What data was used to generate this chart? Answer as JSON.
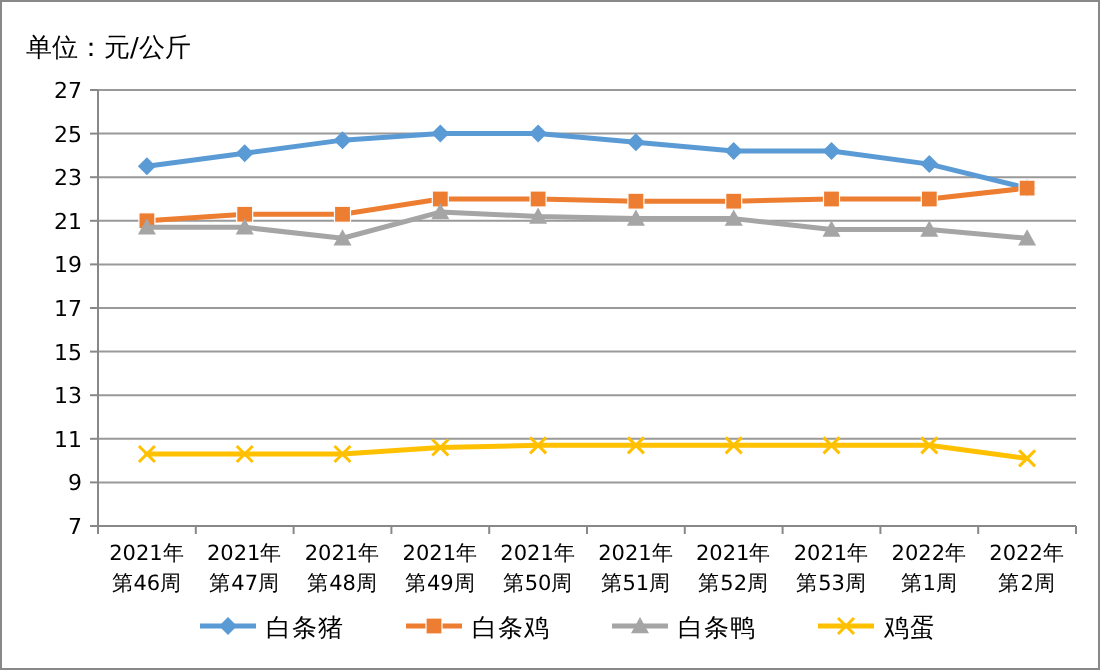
{
  "chart_data": {
    "type": "line",
    "ylabel": "单位：元/公斤",
    "categories": [
      "2021年第46周",
      "2021年第47周",
      "2021年第48周",
      "2021年第49周",
      "2021年第50周",
      "2021年第51周",
      "2021年第52周",
      "2021年第53周",
      "2022年第1周",
      "2022年第2周"
    ],
    "series": [
      {
        "name": "白条猪",
        "color": "#5b9bd5",
        "marker": "diamond",
        "values": [
          23.5,
          24.1,
          24.7,
          25.0,
          25.0,
          24.6,
          24.2,
          24.2,
          23.6,
          22.5
        ]
      },
      {
        "name": "白条鸡",
        "color": "#ed7d31",
        "marker": "square",
        "values": [
          21.0,
          21.3,
          21.3,
          22.0,
          22.0,
          21.9,
          21.9,
          22.0,
          22.0,
          22.5
        ]
      },
      {
        "name": "白条鸭",
        "color": "#a5a5a5",
        "marker": "triangle",
        "values": [
          20.7,
          20.7,
          20.2,
          21.4,
          21.2,
          21.1,
          21.1,
          20.6,
          20.6,
          20.2
        ]
      },
      {
        "name": "鸡蛋",
        "color": "#ffc000",
        "marker": "cross",
        "values": [
          10.3,
          10.3,
          10.3,
          10.6,
          10.7,
          10.7,
          10.7,
          10.7,
          10.7,
          10.1
        ]
      }
    ],
    "ylim": [
      7,
      27
    ],
    "yticks": [
      7,
      9,
      11,
      13,
      15,
      17,
      19,
      21,
      23,
      25,
      27
    ],
    "grid": "y",
    "legend": "bottom",
    "line_style": "solid"
  }
}
